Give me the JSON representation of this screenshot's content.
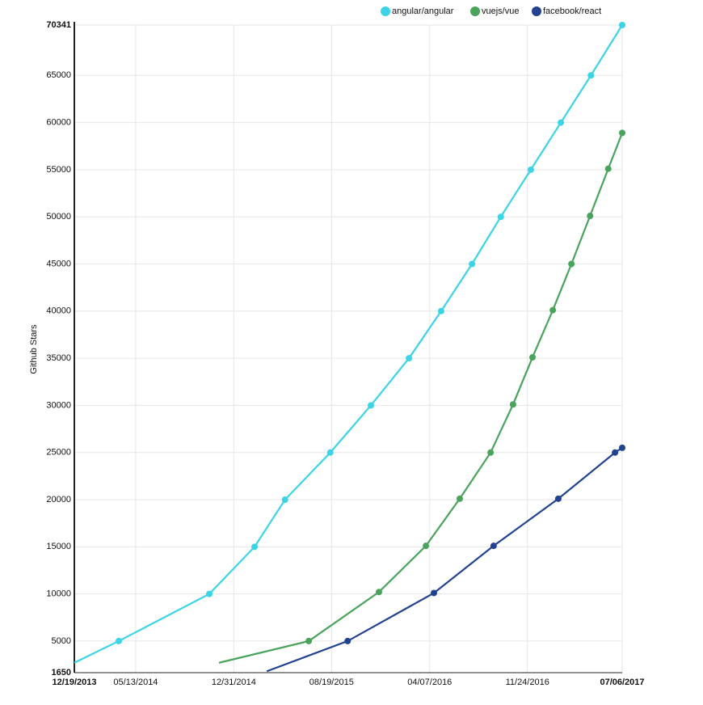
{
  "chart_data": {
    "type": "line",
    "y_label": "Github Stars",
    "xlim": [
      "12/19/2013",
      "07/06/2017"
    ],
    "xticks": [
      "12/19/2013",
      "05/13/2014",
      "12/31/2014",
      "08/19/2015",
      "04/07/2016",
      "11/24/2016",
      "07/06/2017"
    ],
    "ylim": [
      1650,
      70341
    ],
    "yticks": [
      1650,
      5000,
      10000,
      15000,
      20000,
      25000,
      30000,
      35000,
      40000,
      45000,
      50000,
      55000,
      60000,
      65000,
      70341
    ],
    "grid": true,
    "legend": "top",
    "series": [
      {
        "name": "angular/angular",
        "color": "#3ad4e6",
        "x": [
          "12/19/2013",
          "04/03/2014",
          "11/03/2014",
          "02/18/2015",
          "05/01/2015",
          "08/16/2015",
          "11/20/2015",
          "02/18/2016",
          "05/04/2016",
          "07/16/2016",
          "09/22/2016",
          "12/02/2016",
          "02/11/2017",
          "04/23/2017",
          "07/06/2017"
        ],
        "values": [
          2700,
          5000,
          10000,
          15000,
          20000,
          25000,
          30000,
          35000,
          40000,
          45000,
          50000,
          55000,
          60000,
          65000,
          70341
        ]
      },
      {
        "name": "vuejs/vue",
        "color": "#4aa35c",
        "x": [
          "11/26/2014",
          "06/26/2015",
          "12/09/2015",
          "03/29/2016",
          "06/17/2016",
          "08/29/2016",
          "10/21/2016",
          "12/06/2016",
          "01/23/2017",
          "03/08/2017",
          "04/21/2017",
          "06/03/2017",
          "07/06/2017"
        ],
        "values": [
          2700,
          5000,
          10200,
          15100,
          20100,
          25000,
          30100,
          35100,
          40100,
          45000,
          50100,
          55100,
          58900
        ]
      },
      {
        "name": "facebook/react",
        "color": "#22428f",
        "x": [
          "03/19/2015",
          "09/26/2015",
          "04/17/2016",
          "09/05/2016",
          "02/05/2017",
          "06/19/2017",
          "07/06/2017"
        ],
        "values": [
          1800,
          5000,
          10100,
          15100,
          20100,
          25000,
          25500
        ]
      }
    ]
  }
}
